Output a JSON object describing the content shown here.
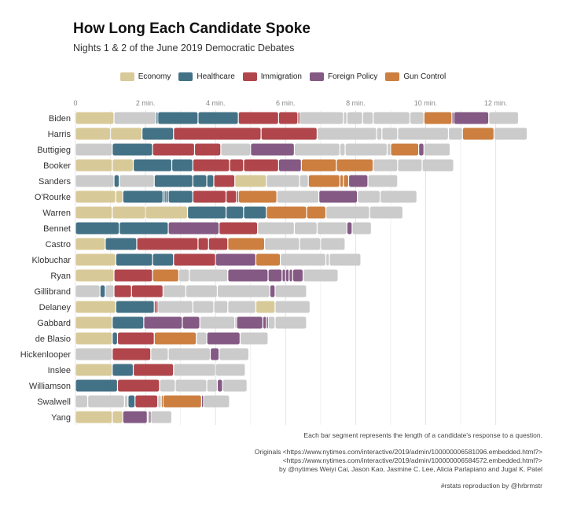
{
  "chart_data": {
    "type": "bar",
    "orientation": "horizontal",
    "stacked": true,
    "title": "How Long Each Candidate Spoke",
    "subtitle": "Nights 1 & 2 of the June 2019 Democratic Debates",
    "x_ticks": [
      "0",
      "2 min.",
      "4 min.",
      "6 min.",
      "8 min.",
      "10 min.",
      "12 min."
    ],
    "x_tick_values": [
      0,
      2,
      4,
      6,
      8,
      10,
      12
    ],
    "xlim": [
      0,
      13.3
    ],
    "grid": "vertical",
    "legend_position": "top",
    "legend": [
      {
        "label": "Economy",
        "key": "Economy",
        "color": "#D8CA98"
      },
      {
        "label": "Healthcare",
        "key": "Healthcare",
        "color": "#437286"
      },
      {
        "label": "Immigration",
        "key": "Immigration",
        "color": "#B0464B"
      },
      {
        "label": "Foreign Policy",
        "key": "Foreign Policy",
        "color": "#845A84"
      },
      {
        "label": "Gun Control",
        "key": "Gun Control",
        "color": "#CC7F3F"
      }
    ],
    "other_color": "#CBCBCB",
    "candidates": [
      {
        "name": "Biden",
        "segments": [
          [
            "Economy",
            1.1
          ],
          [
            "Other",
            1.2
          ],
          [
            "Healthcare",
            0.05
          ],
          [
            "Healthcare",
            1.15
          ],
          [
            "Healthcare",
            1.15
          ],
          [
            "Immigration",
            1.15
          ],
          [
            "Immigration",
            0.55
          ],
          [
            "Immigration",
            0.05
          ],
          [
            "Other",
            1.25
          ],
          [
            "Other",
            0.1
          ],
          [
            "Other",
            0.45
          ],
          [
            "Other",
            0.3
          ],
          [
            "Other",
            1.05
          ],
          [
            "Other",
            0.4
          ],
          [
            "Gun Control",
            0.8
          ],
          [
            "Foreign Policy",
            0.05
          ],
          [
            "Foreign Policy",
            1.0
          ],
          [
            "Other",
            0.85
          ]
        ]
      },
      {
        "name": "Harris",
        "segments": [
          [
            "Economy",
            1.0
          ],
          [
            "Economy",
            0.9
          ],
          [
            "Healthcare",
            0.9
          ],
          [
            "Immigration",
            2.5
          ],
          [
            "Immigration",
            1.6
          ],
          [
            "Other",
            1.7
          ],
          [
            "Other",
            0.15
          ],
          [
            "Other",
            0.45
          ],
          [
            "Other",
            1.45
          ],
          [
            "Other",
            0.4
          ],
          [
            "Gun Control",
            0.9
          ],
          [
            "Other",
            0.95
          ]
        ]
      },
      {
        "name": "Buttigieg",
        "segments": [
          [
            "Other",
            1.05
          ],
          [
            "Healthcare",
            1.15
          ],
          [
            "Immigration",
            1.2
          ],
          [
            "Immigration",
            0.75
          ],
          [
            "Other",
            0.85
          ],
          [
            "Foreign Policy",
            1.25
          ],
          [
            "Other",
            1.3
          ],
          [
            "Other",
            0.15
          ],
          [
            "Other",
            1.2
          ],
          [
            "Other",
            0.1
          ],
          [
            "Gun Control",
            0.8
          ],
          [
            "Foreign Policy",
            0.15
          ],
          [
            "Other",
            0.75
          ]
        ]
      },
      {
        "name": "Booker",
        "segments": [
          [
            "Economy",
            1.05
          ],
          [
            "Economy",
            0.6
          ],
          [
            "Healthcare",
            1.1
          ],
          [
            "Healthcare",
            0.6
          ],
          [
            "Immigration",
            1.05
          ],
          [
            "Immigration",
            0.4
          ],
          [
            "Immigration",
            1.0
          ],
          [
            "Foreign Policy",
            0.65
          ],
          [
            "Gun Control",
            1.0
          ],
          [
            "Gun Control",
            1.05
          ],
          [
            "Other",
            0.7
          ],
          [
            "Other",
            0.7
          ],
          [
            "Other",
            0.9
          ]
        ]
      },
      {
        "name": "Sanders",
        "segments": [
          [
            "Other",
            1.1
          ],
          [
            "Healthcare",
            0.15
          ],
          [
            "Other",
            1.0
          ],
          [
            "Healthcare",
            1.1
          ],
          [
            "Healthcare",
            0.4
          ],
          [
            "Healthcare",
            0.2
          ],
          [
            "Immigration",
            0.6
          ],
          [
            "Economy",
            0.9
          ],
          [
            "Other",
            0.95
          ],
          [
            "Other",
            0.25
          ],
          [
            "Gun Control",
            0.9
          ],
          [
            "Gun Control",
            0.1
          ],
          [
            "Gun Control",
            0.15
          ],
          [
            "Foreign Policy",
            0.55
          ],
          [
            "Other",
            0.85
          ]
        ]
      },
      {
        "name": "O'Rourke",
        "segments": [
          [
            "Economy",
            1.15
          ],
          [
            "Economy",
            0.2
          ],
          [
            "Healthcare",
            1.15
          ],
          [
            "Healthcare",
            0.05
          ],
          [
            "Healthcare",
            0.05
          ],
          [
            "Healthcare",
            0.05
          ],
          [
            "Healthcare",
            0.7
          ],
          [
            "Immigration",
            0.95
          ],
          [
            "Immigration",
            0.3
          ],
          [
            "Immigration",
            0.05
          ],
          [
            "Gun Control",
            1.1
          ],
          [
            "Other",
            1.2
          ],
          [
            "Foreign Policy",
            1.1
          ],
          [
            "Other",
            0.65
          ],
          [
            "Other",
            1.05
          ]
        ]
      },
      {
        "name": "Warren",
        "segments": [
          [
            "Economy",
            1.05
          ],
          [
            "Economy",
            0.95
          ],
          [
            "Economy",
            1.2
          ],
          [
            "Healthcare",
            1.1
          ],
          [
            "Healthcare",
            0.5
          ],
          [
            "Healthcare",
            0.65
          ],
          [
            "Gun Control",
            1.15
          ],
          [
            "Gun Control",
            0.55
          ],
          [
            "Other",
            1.25
          ],
          [
            "Other",
            0.95
          ]
        ]
      },
      {
        "name": "Bennet",
        "segments": [
          [
            "Healthcare",
            1.25
          ],
          [
            "Healthcare",
            1.4
          ],
          [
            "Foreign Policy",
            1.45
          ],
          [
            "Immigration",
            1.1
          ],
          [
            "Other",
            1.05
          ],
          [
            "Other",
            0.65
          ],
          [
            "Other",
            0.85
          ],
          [
            "Foreign Policy",
            0.15
          ],
          [
            "Other",
            0.55
          ]
        ]
      },
      {
        "name": "Castro",
        "segments": [
          [
            "Economy",
            0.85
          ],
          [
            "Healthcare",
            0.9
          ],
          [
            "Immigration",
            1.75
          ],
          [
            "Immigration",
            0.3
          ],
          [
            "Immigration",
            0.55
          ],
          [
            "Gun Control",
            1.05
          ],
          [
            "Other",
            1.0
          ],
          [
            "Other",
            0.6
          ],
          [
            "Other",
            0.7
          ]
        ]
      },
      {
        "name": "Klobuchar",
        "segments": [
          [
            "Economy",
            1.15
          ],
          [
            "Healthcare",
            1.05
          ],
          [
            "Healthcare",
            0.6
          ],
          [
            "Immigration",
            1.2
          ],
          [
            "Foreign Policy",
            1.15
          ],
          [
            "Gun Control",
            0.7
          ],
          [
            "Other",
            1.3
          ],
          [
            "Other",
            0.1
          ],
          [
            "Other",
            0.9
          ]
        ]
      },
      {
        "name": "Ryan",
        "segments": [
          [
            "Economy",
            1.1
          ],
          [
            "Immigration",
            1.1
          ],
          [
            "Gun Control",
            0.75
          ],
          [
            "Other",
            0.3
          ],
          [
            "Other",
            1.1
          ],
          [
            "Foreign Policy",
            1.15
          ],
          [
            "Foreign Policy",
            0.4
          ],
          [
            "Foreign Policy",
            0.1
          ],
          [
            "Foreign Policy",
            0.1
          ],
          [
            "Foreign Policy",
            0.1
          ],
          [
            "Foreign Policy",
            0.3
          ],
          [
            "Other",
            1.0
          ]
        ]
      },
      {
        "name": "Gillibrand",
        "segments": [
          [
            "Other",
            0.7
          ],
          [
            "Healthcare",
            0.15
          ],
          [
            "Other",
            0.25
          ],
          [
            "Immigration",
            0.5
          ],
          [
            "Immigration",
            0.9
          ],
          [
            "Other",
            0.65
          ],
          [
            "Other",
            0.9
          ],
          [
            "Other",
            1.5
          ],
          [
            "Foreign Policy",
            0.15
          ],
          [
            "Other",
            0.9
          ]
        ]
      },
      {
        "name": "Delaney",
        "segments": [
          [
            "Economy",
            1.15
          ],
          [
            "Healthcare",
            1.1
          ],
          [
            "Immigration",
            0.05
          ],
          [
            "Immigration",
            0.05
          ],
          [
            "Other",
            1.0
          ],
          [
            "Other",
            0.6
          ],
          [
            "Other",
            0.4
          ],
          [
            "Other",
            0.8
          ],
          [
            "Economy",
            0.55
          ],
          [
            "Other",
            1.0
          ]
        ]
      },
      {
        "name": "Gabbard",
        "segments": [
          [
            "Economy",
            1.05
          ],
          [
            "Healthcare",
            0.9
          ],
          [
            "Foreign Policy",
            1.1
          ],
          [
            "Foreign Policy",
            0.5
          ],
          [
            "Other",
            1.0
          ],
          [
            "Other",
            0.05
          ],
          [
            "Foreign Policy",
            0.75
          ],
          [
            "Foreign Policy",
            0.1
          ],
          [
            "Foreign Policy",
            0.05
          ],
          [
            "Other",
            0.2
          ],
          [
            "Other",
            0.9
          ]
        ]
      },
      {
        "name": "de Blasio",
        "segments": [
          [
            "Economy",
            1.05
          ],
          [
            "Healthcare",
            0.15
          ],
          [
            "Immigration",
            1.05
          ],
          [
            "Gun Control",
            1.2
          ],
          [
            "Other",
            0.3
          ],
          [
            "Foreign Policy",
            0.95
          ],
          [
            "Other",
            0.8
          ]
        ]
      },
      {
        "name": "Hickenlooper",
        "segments": [
          [
            "Other",
            1.05
          ],
          [
            "Immigration",
            1.1
          ],
          [
            "Other",
            0.5
          ],
          [
            "Other",
            1.2
          ],
          [
            "Foreign Policy",
            0.25
          ],
          [
            "Other",
            0.85
          ]
        ]
      },
      {
        "name": "Inslee",
        "segments": [
          [
            "Economy",
            1.05
          ],
          [
            "Healthcare",
            0.6
          ],
          [
            "Immigration",
            1.15
          ],
          [
            "Other",
            1.2
          ],
          [
            "Other",
            0.85
          ]
        ]
      },
      {
        "name": "Williamson",
        "segments": [
          [
            "Healthcare",
            1.2
          ],
          [
            "Immigration",
            1.2
          ],
          [
            "Other",
            0.45
          ],
          [
            "Other",
            0.9
          ],
          [
            "Other",
            0.3
          ],
          [
            "Foreign Policy",
            0.15
          ],
          [
            "Other",
            0.7
          ]
        ]
      },
      {
        "name": "Swalwell",
        "segments": [
          [
            "Other",
            0.35
          ],
          [
            "Other",
            1.05
          ],
          [
            "Other",
            0.1
          ],
          [
            "Healthcare",
            0.2
          ],
          [
            "Immigration",
            0.65
          ],
          [
            "Other",
            0.1
          ],
          [
            "Gun Control",
            0.05
          ],
          [
            "Gun Control",
            1.1
          ],
          [
            "Foreign Policy",
            0.05
          ],
          [
            "Other",
            0.75
          ]
        ]
      },
      {
        "name": "Yang",
        "segments": [
          [
            "Economy",
            1.05
          ],
          [
            "Economy",
            0.3
          ],
          [
            "Foreign Policy",
            0.7
          ],
          [
            "Other",
            0.05
          ],
          [
            "Foreign Policy",
            0.05
          ],
          [
            "Other",
            0.6
          ]
        ]
      }
    ]
  },
  "notes": {
    "caption": "Each bar segment represents the length of a candidate's response to a question.",
    "source_line1": "Originals <https://www.nytimes.com/interactive/2019/admin/100000006581096.embedded.html?>",
    "source_line2": "<https://www.nytimes.com/interactive/2019/admin/100000006584572.embedded.html?>",
    "source_line3": "by @nytimes Weiyi Cai, Jason Kao, Jasmine C. Lee, Alicia Parlapiano and Jugal K. Patel",
    "credit": "#rstats reproduction by @hrbrmstr"
  }
}
